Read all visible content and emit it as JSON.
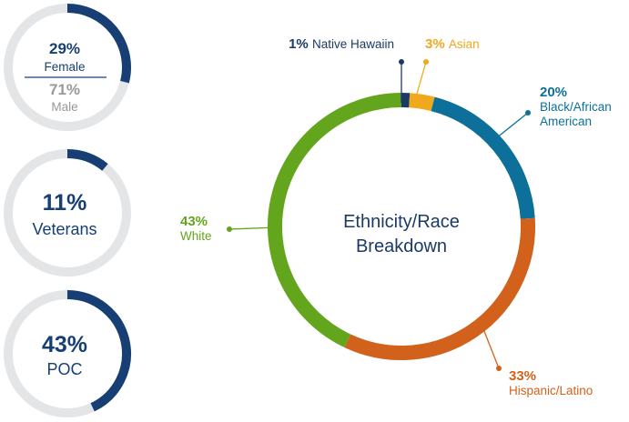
{
  "colors": {
    "track": "#e4e5e7",
    "navy": "#173f73",
    "gray_text": "#999999",
    "navy_hawaiian": "#1b3a66",
    "asian": "#f0a81c",
    "black": "#0c709a",
    "hispanic": "#d2611b",
    "white": "#64a51e"
  },
  "stats": [
    {
      "id": "gender",
      "value": 29,
      "primary_pct": "29%",
      "primary_label": "Female",
      "secondary_pct": "71%",
      "secondary_label": "Male"
    },
    {
      "id": "veterans",
      "value": 11,
      "pct": "11%",
      "label": "Veterans"
    },
    {
      "id": "poc",
      "value": 43,
      "pct": "43%",
      "label": "POC"
    }
  ],
  "chart_data": {
    "type": "pie",
    "title": "Ethnicity/Race Breakdown",
    "title_lines": [
      "Ethnicity/Race",
      "Breakdown"
    ],
    "slices": [
      {
        "name": "Native Hawaiin",
        "value": 1,
        "pct_label": "1%",
        "label_lines": [
          "Native Hawaiin"
        ]
      },
      {
        "name": "Asian",
        "value": 3,
        "pct_label": "3%",
        "label_lines": [
          "Asian"
        ]
      },
      {
        "name": "Black/African American",
        "value": 20,
        "pct_label": "20%",
        "label_lines": [
          "Black/African",
          "American"
        ]
      },
      {
        "name": "Hispanic/Latino",
        "value": 33,
        "pct_label": "33%",
        "label_lines": [
          "Hispanic/Latino"
        ]
      },
      {
        "name": "White",
        "value": 43,
        "pct_label": "43%",
        "label_lines": [
          "White"
        ]
      }
    ]
  }
}
